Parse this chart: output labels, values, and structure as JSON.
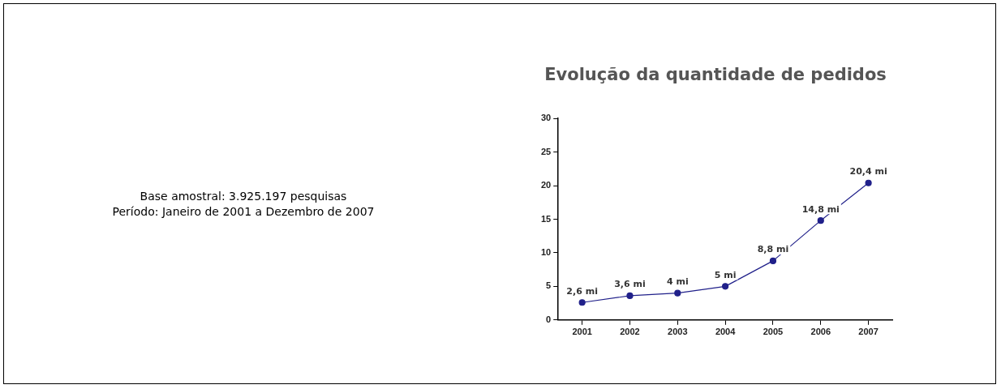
{
  "chart_data": {
    "type": "line",
    "title": "Evolução da quantidade de pedidos",
    "categories": [
      "2001",
      "2002",
      "2003",
      "2004",
      "2005",
      "2006",
      "2007"
    ],
    "series": [
      {
        "color": "#20208a",
        "values": [
          2.6,
          3.6,
          4,
          5,
          8.8,
          14.8,
          20.4
        ],
        "value_labels": [
          "2,6 mi",
          "3,6 mi",
          "4 mi",
          "5 mi",
          "8,8 mi",
          "14,8 mi",
          "20,4 mi"
        ]
      }
    ],
    "ylim": [
      0,
      30
    ],
    "yticks": [
      0,
      5,
      10,
      15,
      20,
      25,
      30
    ],
    "grid": false,
    "legend": false,
    "marker": "circle",
    "line_style": "solid",
    "annotations": [
      "Base amostral: 3.925.197 pesquisas",
      "Período: Janeiro de 2001 a Dezembro de 2007"
    ]
  }
}
